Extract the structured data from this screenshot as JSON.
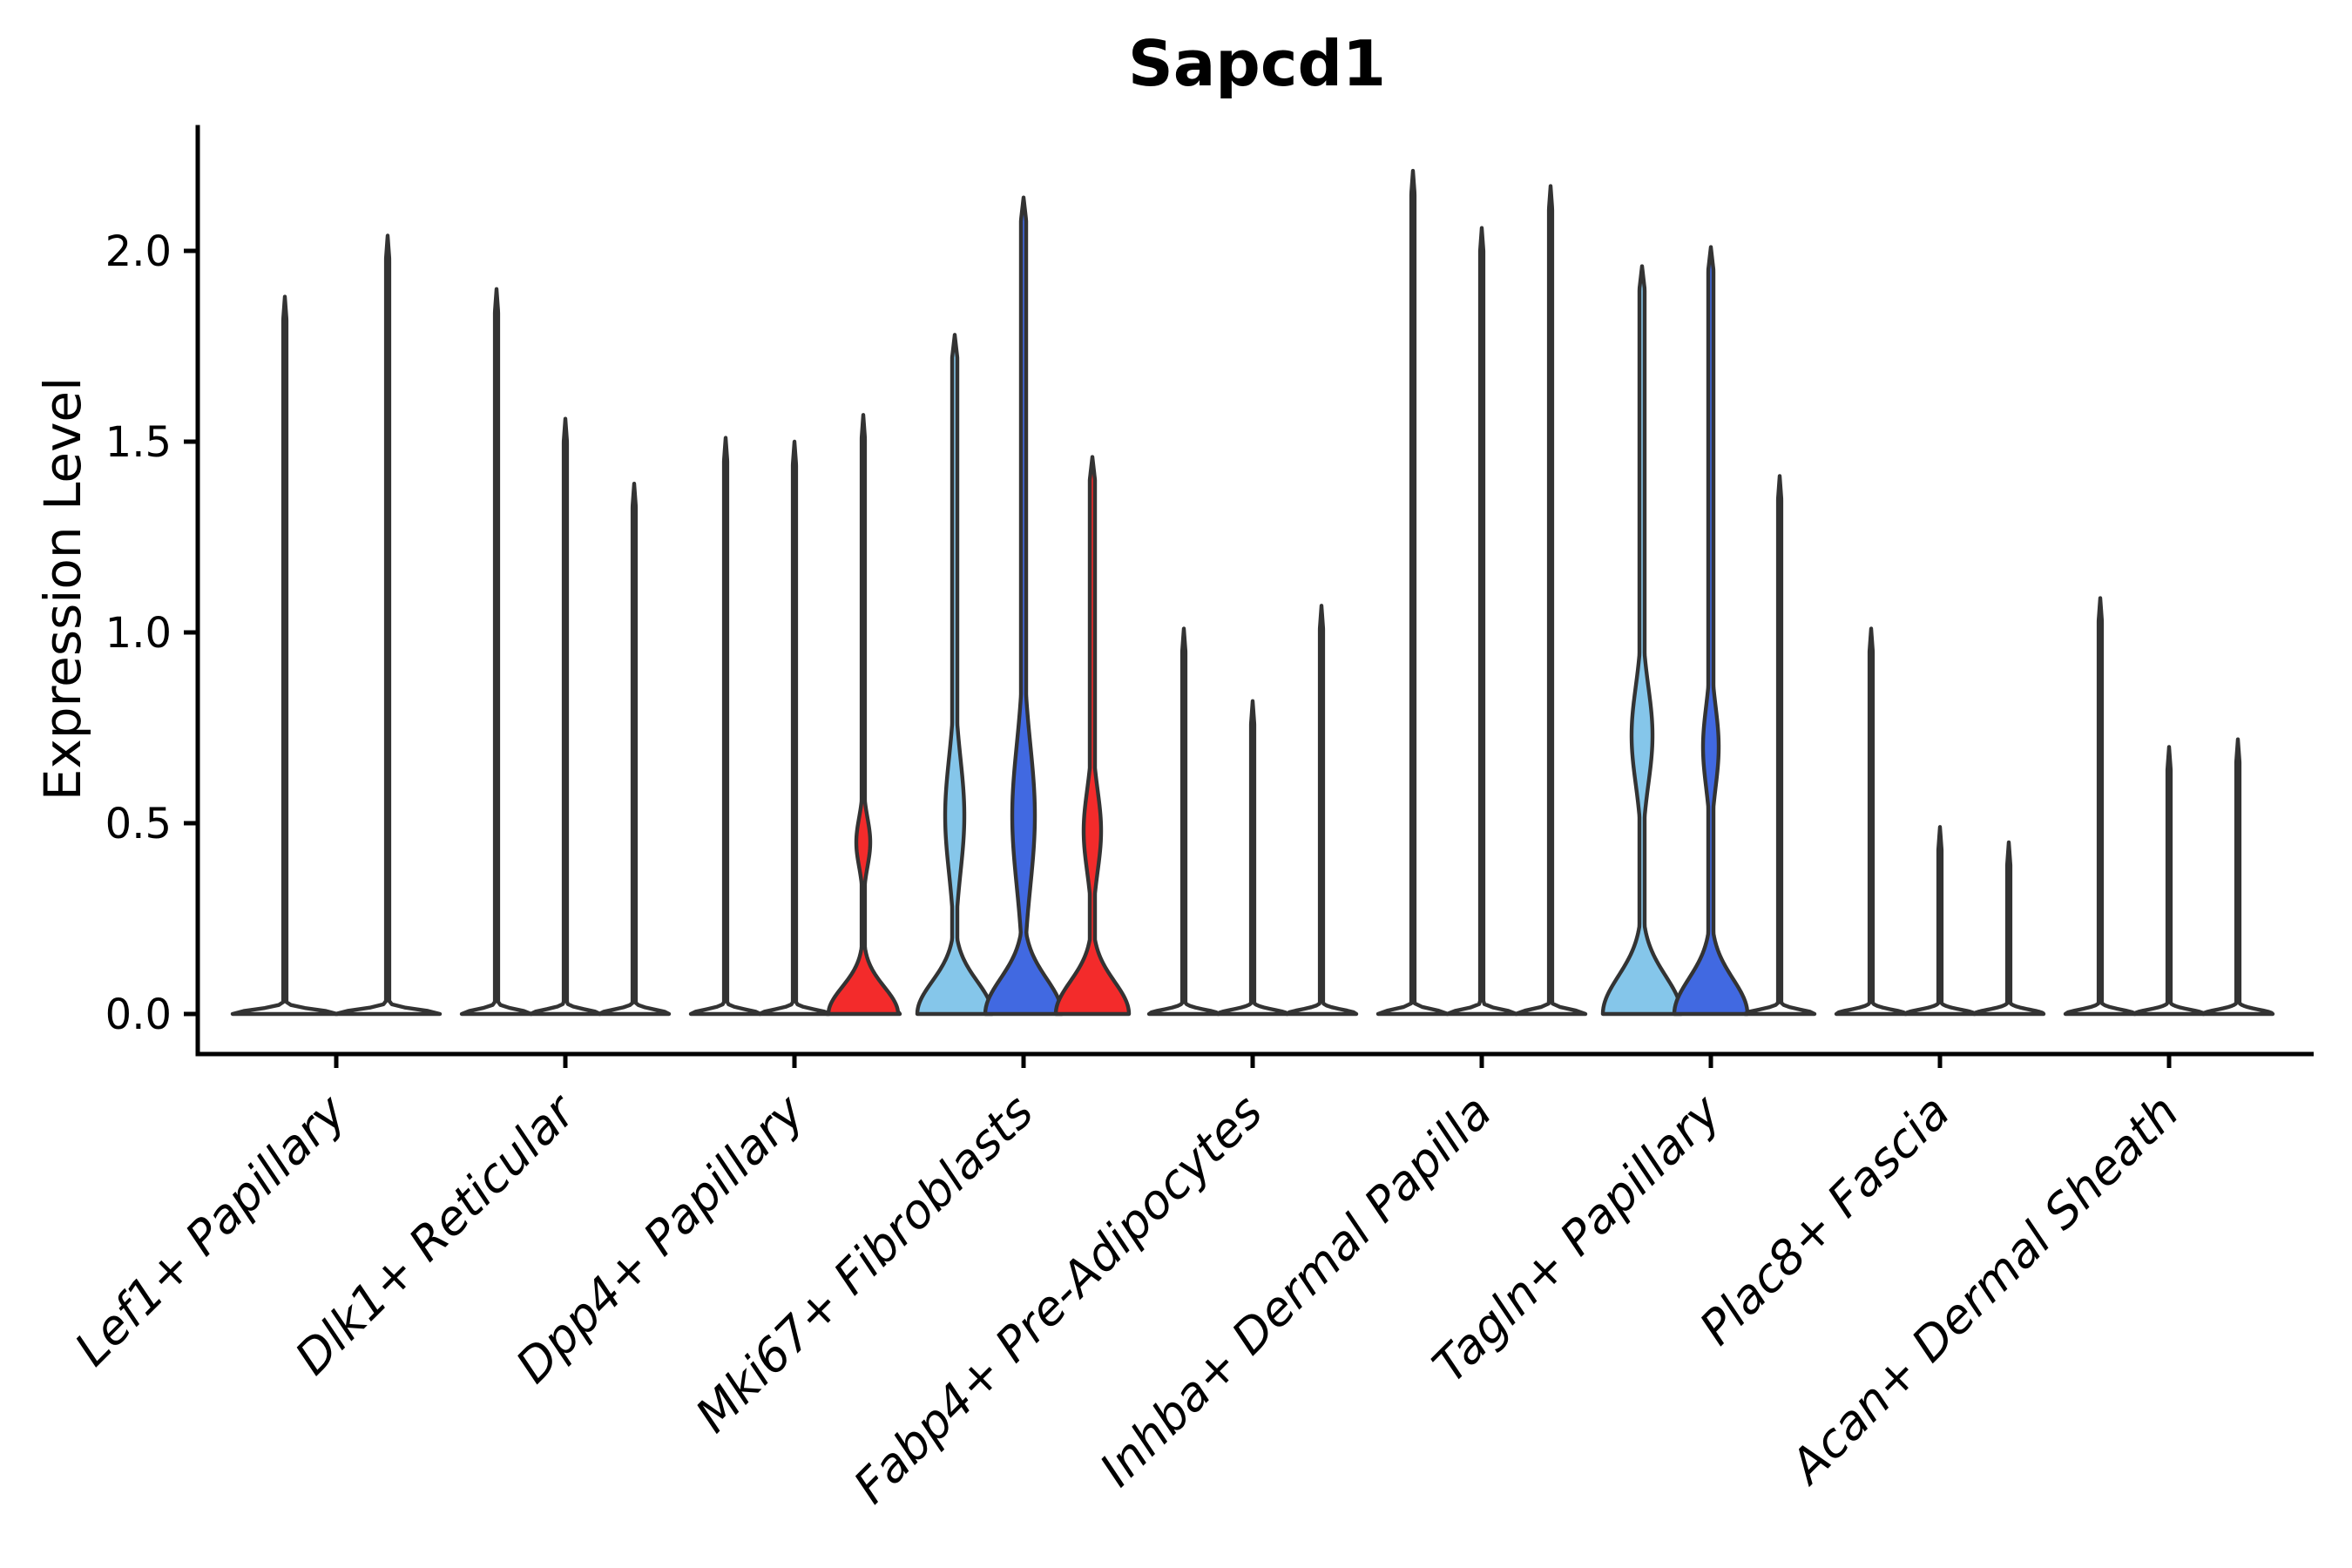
{
  "chart_data": {
    "type": "violin",
    "title": "Sapcd1",
    "xlabel": "",
    "ylabel": "Expression Level",
    "ylim": [
      0,
      2.33
    ],
    "grid": false,
    "legend": "none",
    "background": "#ffffff",
    "outline_color": "#333333",
    "colors": {
      "plain": "#ffffff",
      "red": "#f32b2b",
      "light_blue": "#85c6ea",
      "blue": "#4169e1"
    },
    "yticks": [
      {
        "value": 0.0,
        "label": "0.0"
      },
      {
        "value": 0.5,
        "label": "0.5"
      },
      {
        "value": 1.0,
        "label": "1.0"
      },
      {
        "value": 1.5,
        "label": "1.5"
      },
      {
        "value": 2.0,
        "label": "2.0"
      }
    ],
    "categories": [
      "Lef1+ Papillary",
      "Dlk1+ Reticular",
      "Dpp4+ Papillary",
      "Mki67+ Fibroblasts",
      "Fabp4+ Pre-Adipocytes",
      "Inhba+ Dermal Papilla",
      "Tagln+ Papillary",
      "Plac8+ Fascia",
      "Acan+ Dermal Sheath"
    ],
    "groups": [
      {
        "category": "Lef1+ Papillary",
        "violins": [
          {
            "color": "plain",
            "max_expression": 1.88,
            "offset": -59,
            "base_halfwidth": 60
          },
          {
            "color": "plain",
            "max_expression": 2.04,
            "offset": 59,
            "base_halfwidth": 60
          }
        ]
      },
      {
        "category": "Dlk1+ Reticular",
        "violins": [
          {
            "color": "plain",
            "max_expression": 1.9,
            "offset": -79,
            "base_halfwidth": 40
          },
          {
            "color": "plain",
            "max_expression": 1.56,
            "offset": 0,
            "base_halfwidth": 40
          },
          {
            "color": "plain",
            "max_expression": 1.39,
            "offset": 79,
            "base_halfwidth": 40
          }
        ]
      },
      {
        "category": "Dpp4+ Papillary",
        "violins": [
          {
            "color": "plain",
            "max_expression": 1.51,
            "offset": -79,
            "base_halfwidth": 40
          },
          {
            "color": "plain",
            "max_expression": 1.5,
            "offset": 0,
            "base_halfwidth": 40
          },
          {
            "color": "red",
            "max_expression": 1.57,
            "offset": 79,
            "base_halfwidth": 42,
            "foot": {
              "halfwidth": 40,
              "scale": 0.1
            },
            "spindle": {
              "peak": 0.45,
              "scale": 0.09,
              "halfwidth": 8
            }
          }
        ]
      },
      {
        "category": "Mki67+ Fibroblasts",
        "violins": [
          {
            "color": "light_blue",
            "max_expression": 1.78,
            "offset": -79,
            "base_halfwidth": 43,
            "spike_halfwidth": 3,
            "foot": {
              "halfwidth": 43,
              "scale": 0.12
            },
            "spindle": {
              "peak": 0.52,
              "scale": 0.21,
              "halfwidth": 11
            }
          },
          {
            "color": "blue",
            "max_expression": 2.14,
            "offset": 0,
            "base_halfwidth": 44,
            "spike_halfwidth": 3,
            "foot": {
              "halfwidth": 44,
              "scale": 0.13
            },
            "spindle": {
              "peak": 0.52,
              "scale": 0.26,
              "halfwidth": 13
            }
          },
          {
            "color": "red",
            "max_expression": 1.46,
            "offset": 79,
            "base_halfwidth": 42,
            "spike_halfwidth": 3,
            "foot": {
              "halfwidth": 42,
              "scale": 0.12
            },
            "spindle": {
              "peak": 0.48,
              "scale": 0.15,
              "halfwidth": 10
            }
          }
        ]
      },
      {
        "category": "Fabp4+ Pre-Adipocytes",
        "violins": [
          {
            "color": "plain",
            "max_expression": 1.01,
            "offset": -79,
            "base_halfwidth": 40
          },
          {
            "color": "plain",
            "max_expression": 0.82,
            "offset": 0,
            "base_halfwidth": 40
          },
          {
            "color": "plain",
            "max_expression": 1.07,
            "offset": 79,
            "base_halfwidth": 40
          }
        ]
      },
      {
        "category": "Inhba+ Dermal Papilla",
        "violins": [
          {
            "color": "plain",
            "max_expression": 2.21,
            "offset": -79,
            "base_halfwidth": 40
          },
          {
            "color": "plain",
            "max_expression": 2.06,
            "offset": 0,
            "base_halfwidth": 40
          },
          {
            "color": "plain",
            "max_expression": 2.17,
            "offset": 79,
            "base_halfwidth": 40
          }
        ]
      },
      {
        "category": "Tagln+ Papillary",
        "violins": [
          {
            "color": "light_blue",
            "max_expression": 1.96,
            "offset": -79,
            "base_halfwidth": 45,
            "spike_halfwidth": 3,
            "foot": {
              "halfwidth": 45,
              "scale": 0.14
            },
            "spindle": {
              "peak": 0.73,
              "scale": 0.18,
              "halfwidth": 12
            }
          },
          {
            "color": "blue",
            "max_expression": 2.01,
            "offset": 0,
            "base_halfwidth": 42,
            "spike_halfwidth": 3,
            "foot": {
              "halfwidth": 42,
              "scale": 0.13
            },
            "spindle": {
              "peak": 0.7,
              "scale": 0.15,
              "halfwidth": 9
            }
          },
          {
            "color": "plain",
            "max_expression": 1.41,
            "offset": 79,
            "base_halfwidth": 40
          }
        ]
      },
      {
        "category": "Plac8+ Fascia",
        "violins": [
          {
            "color": "plain",
            "max_expression": 1.01,
            "offset": -79,
            "base_halfwidth": 40
          },
          {
            "color": "plain",
            "max_expression": 0.49,
            "offset": 0,
            "base_halfwidth": 40
          },
          {
            "color": "plain",
            "max_expression": 0.45,
            "offset": 79,
            "base_halfwidth": 40
          }
        ]
      },
      {
        "category": "Acan+ Dermal Sheath",
        "violins": [
          {
            "color": "plain",
            "max_expression": 1.09,
            "offset": -79,
            "base_halfwidth": 40
          },
          {
            "color": "plain",
            "max_expression": 0.7,
            "offset": 0,
            "base_halfwidth": 40
          },
          {
            "color": "plain",
            "max_expression": 0.72,
            "offset": 79,
            "base_halfwidth": 40
          }
        ]
      }
    ]
  }
}
